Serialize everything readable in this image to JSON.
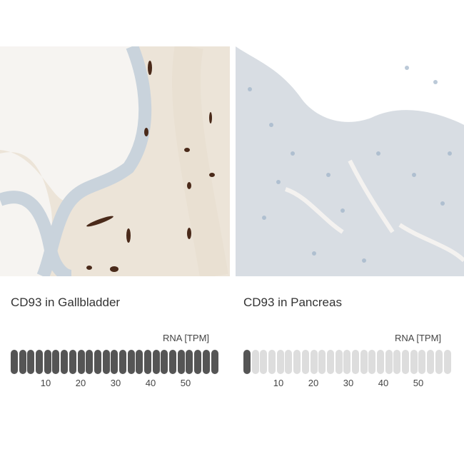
{
  "panels": [
    {
      "title": "CD93 in Gallbladder",
      "rna_label": "RNA [TPM]",
      "segments": 25,
      "filled": 25,
      "ticks": [
        "10",
        "20",
        "30",
        "40",
        "50"
      ]
    },
    {
      "title": "CD93 in Pancreas",
      "rna_label": "RNA [TPM]",
      "segments": 25,
      "filled": 1,
      "ticks": [
        "10",
        "20",
        "30",
        "40",
        "50"
      ]
    }
  ],
  "colors": {
    "filled": "#555555",
    "empty": "#dddddd"
  }
}
